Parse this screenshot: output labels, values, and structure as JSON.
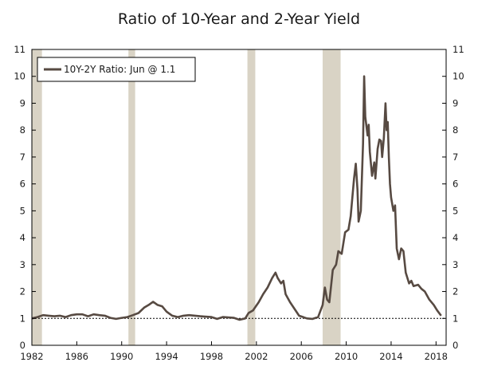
{
  "chart_data": {
    "type": "line",
    "title": "Ratio of 10-Year and 2-Year Yield",
    "xlabel": "",
    "ylabel": "",
    "xlim": [
      1982.0,
      2018.9
    ],
    "ylim": [
      0,
      11
    ],
    "x_ticks": [
      1982,
      1986,
      1990,
      1994,
      1998,
      2002,
      2006,
      2010,
      2014,
      2018
    ],
    "x_tick_labels": [
      "1982",
      "1986",
      "1990",
      "1994",
      "1998",
      "2002",
      "2006",
      "2010",
      "2014",
      "2018"
    ],
    "y_ticks": [
      0,
      1,
      2,
      3,
      4,
      5,
      6,
      7,
      8,
      9,
      10,
      11
    ],
    "y_tick_labels": [
      "0",
      "1",
      "2",
      "3",
      "4",
      "5",
      "6",
      "7",
      "8",
      "9",
      "10",
      "11"
    ],
    "reference_line": {
      "y": 1,
      "style": "dotted"
    },
    "recessions": [
      {
        "start": 1982.0,
        "end": 1982.9
      },
      {
        "start": 1990.6,
        "end": 1991.2
      },
      {
        "start": 2001.2,
        "end": 2001.9
      },
      {
        "start": 2007.9,
        "end": 2009.5
      }
    ],
    "legend": {
      "position": "top-left",
      "label": "10Y-2Y Ratio: Jun @ 1.1"
    },
    "colors": {
      "series": "#574a42",
      "recession": "#d9d3c5",
      "axis": "#000000"
    },
    "series": [
      {
        "name": "10Y-2Y Ratio: Jun @ 1.1",
        "points": [
          [
            1982.0,
            1.0
          ],
          [
            1982.5,
            1.05
          ],
          [
            1983.0,
            1.12
          ],
          [
            1983.5,
            1.1
          ],
          [
            1984.0,
            1.08
          ],
          [
            1984.5,
            1.1
          ],
          [
            1985.0,
            1.05
          ],
          [
            1985.5,
            1.12
          ],
          [
            1986.0,
            1.15
          ],
          [
            1986.5,
            1.15
          ],
          [
            1987.0,
            1.08
          ],
          [
            1987.5,
            1.15
          ],
          [
            1988.0,
            1.12
          ],
          [
            1988.5,
            1.1
          ],
          [
            1989.0,
            1.02
          ],
          [
            1989.5,
            0.98
          ],
          [
            1990.0,
            1.02
          ],
          [
            1990.5,
            1.05
          ],
          [
            1991.0,
            1.12
          ],
          [
            1991.5,
            1.2
          ],
          [
            1992.0,
            1.4
          ],
          [
            1992.4,
            1.5
          ],
          [
            1992.8,
            1.62
          ],
          [
            1993.2,
            1.5
          ],
          [
            1993.6,
            1.45
          ],
          [
            1994.0,
            1.25
          ],
          [
            1994.5,
            1.1
          ],
          [
            1995.0,
            1.05
          ],
          [
            1995.5,
            1.1
          ],
          [
            1996.0,
            1.12
          ],
          [
            1997.0,
            1.08
          ],
          [
            1998.0,
            1.05
          ],
          [
            1998.5,
            0.98
          ],
          [
            1999.0,
            1.05
          ],
          [
            2000.0,
            1.02
          ],
          [
            2000.5,
            0.95
          ],
          [
            2001.0,
            1.0
          ],
          [
            2001.3,
            1.2
          ],
          [
            2001.7,
            1.3
          ],
          [
            2002.2,
            1.6
          ],
          [
            2002.6,
            1.9
          ],
          [
            2003.0,
            2.15
          ],
          [
            2003.4,
            2.5
          ],
          [
            2003.7,
            2.7
          ],
          [
            2003.9,
            2.5
          ],
          [
            2004.2,
            2.3
          ],
          [
            2004.4,
            2.4
          ],
          [
            2004.6,
            1.9
          ],
          [
            2005.0,
            1.6
          ],
          [
            2005.4,
            1.35
          ],
          [
            2005.8,
            1.1
          ],
          [
            2006.5,
            1.0
          ],
          [
            2007.0,
            0.98
          ],
          [
            2007.5,
            1.05
          ],
          [
            2007.9,
            1.5
          ],
          [
            2008.1,
            2.15
          ],
          [
            2008.3,
            1.7
          ],
          [
            2008.5,
            1.6
          ],
          [
            2008.8,
            2.8
          ],
          [
            2009.1,
            3.0
          ],
          [
            2009.3,
            3.5
          ],
          [
            2009.6,
            3.4
          ],
          [
            2009.9,
            4.2
          ],
          [
            2010.2,
            4.3
          ],
          [
            2010.4,
            4.8
          ],
          [
            2010.7,
            6.2
          ],
          [
            2010.85,
            6.75
          ],
          [
            2011.0,
            5.8
          ],
          [
            2011.1,
            4.6
          ],
          [
            2011.3,
            5.0
          ],
          [
            2011.5,
            7.5
          ],
          [
            2011.6,
            10.0
          ],
          [
            2011.7,
            8.5
          ],
          [
            2011.9,
            7.8
          ],
          [
            2012.0,
            8.2
          ],
          [
            2012.1,
            7.2
          ],
          [
            2012.3,
            6.3
          ],
          [
            2012.5,
            6.8
          ],
          [
            2012.6,
            6.2
          ],
          [
            2012.8,
            7.3
          ],
          [
            2012.95,
            7.65
          ],
          [
            2013.1,
            7.6
          ],
          [
            2013.2,
            7.0
          ],
          [
            2013.35,
            7.7
          ],
          [
            2013.5,
            9.0
          ],
          [
            2013.6,
            8.0
          ],
          [
            2013.7,
            8.3
          ],
          [
            2013.8,
            7.0
          ],
          [
            2013.9,
            6.0
          ],
          [
            2014.0,
            5.5
          ],
          [
            2014.2,
            5.0
          ],
          [
            2014.35,
            5.2
          ],
          [
            2014.5,
            3.6
          ],
          [
            2014.7,
            3.2
          ],
          [
            2014.9,
            3.6
          ],
          [
            2015.1,
            3.5
          ],
          [
            2015.3,
            2.7
          ],
          [
            2015.6,
            2.3
          ],
          [
            2015.8,
            2.4
          ],
          [
            2016.0,
            2.2
          ],
          [
            2016.4,
            2.25
          ],
          [
            2016.7,
            2.1
          ],
          [
            2017.0,
            2.0
          ],
          [
            2017.4,
            1.7
          ],
          [
            2017.8,
            1.5
          ],
          [
            2018.1,
            1.3
          ],
          [
            2018.45,
            1.1
          ]
        ]
      }
    ]
  }
}
